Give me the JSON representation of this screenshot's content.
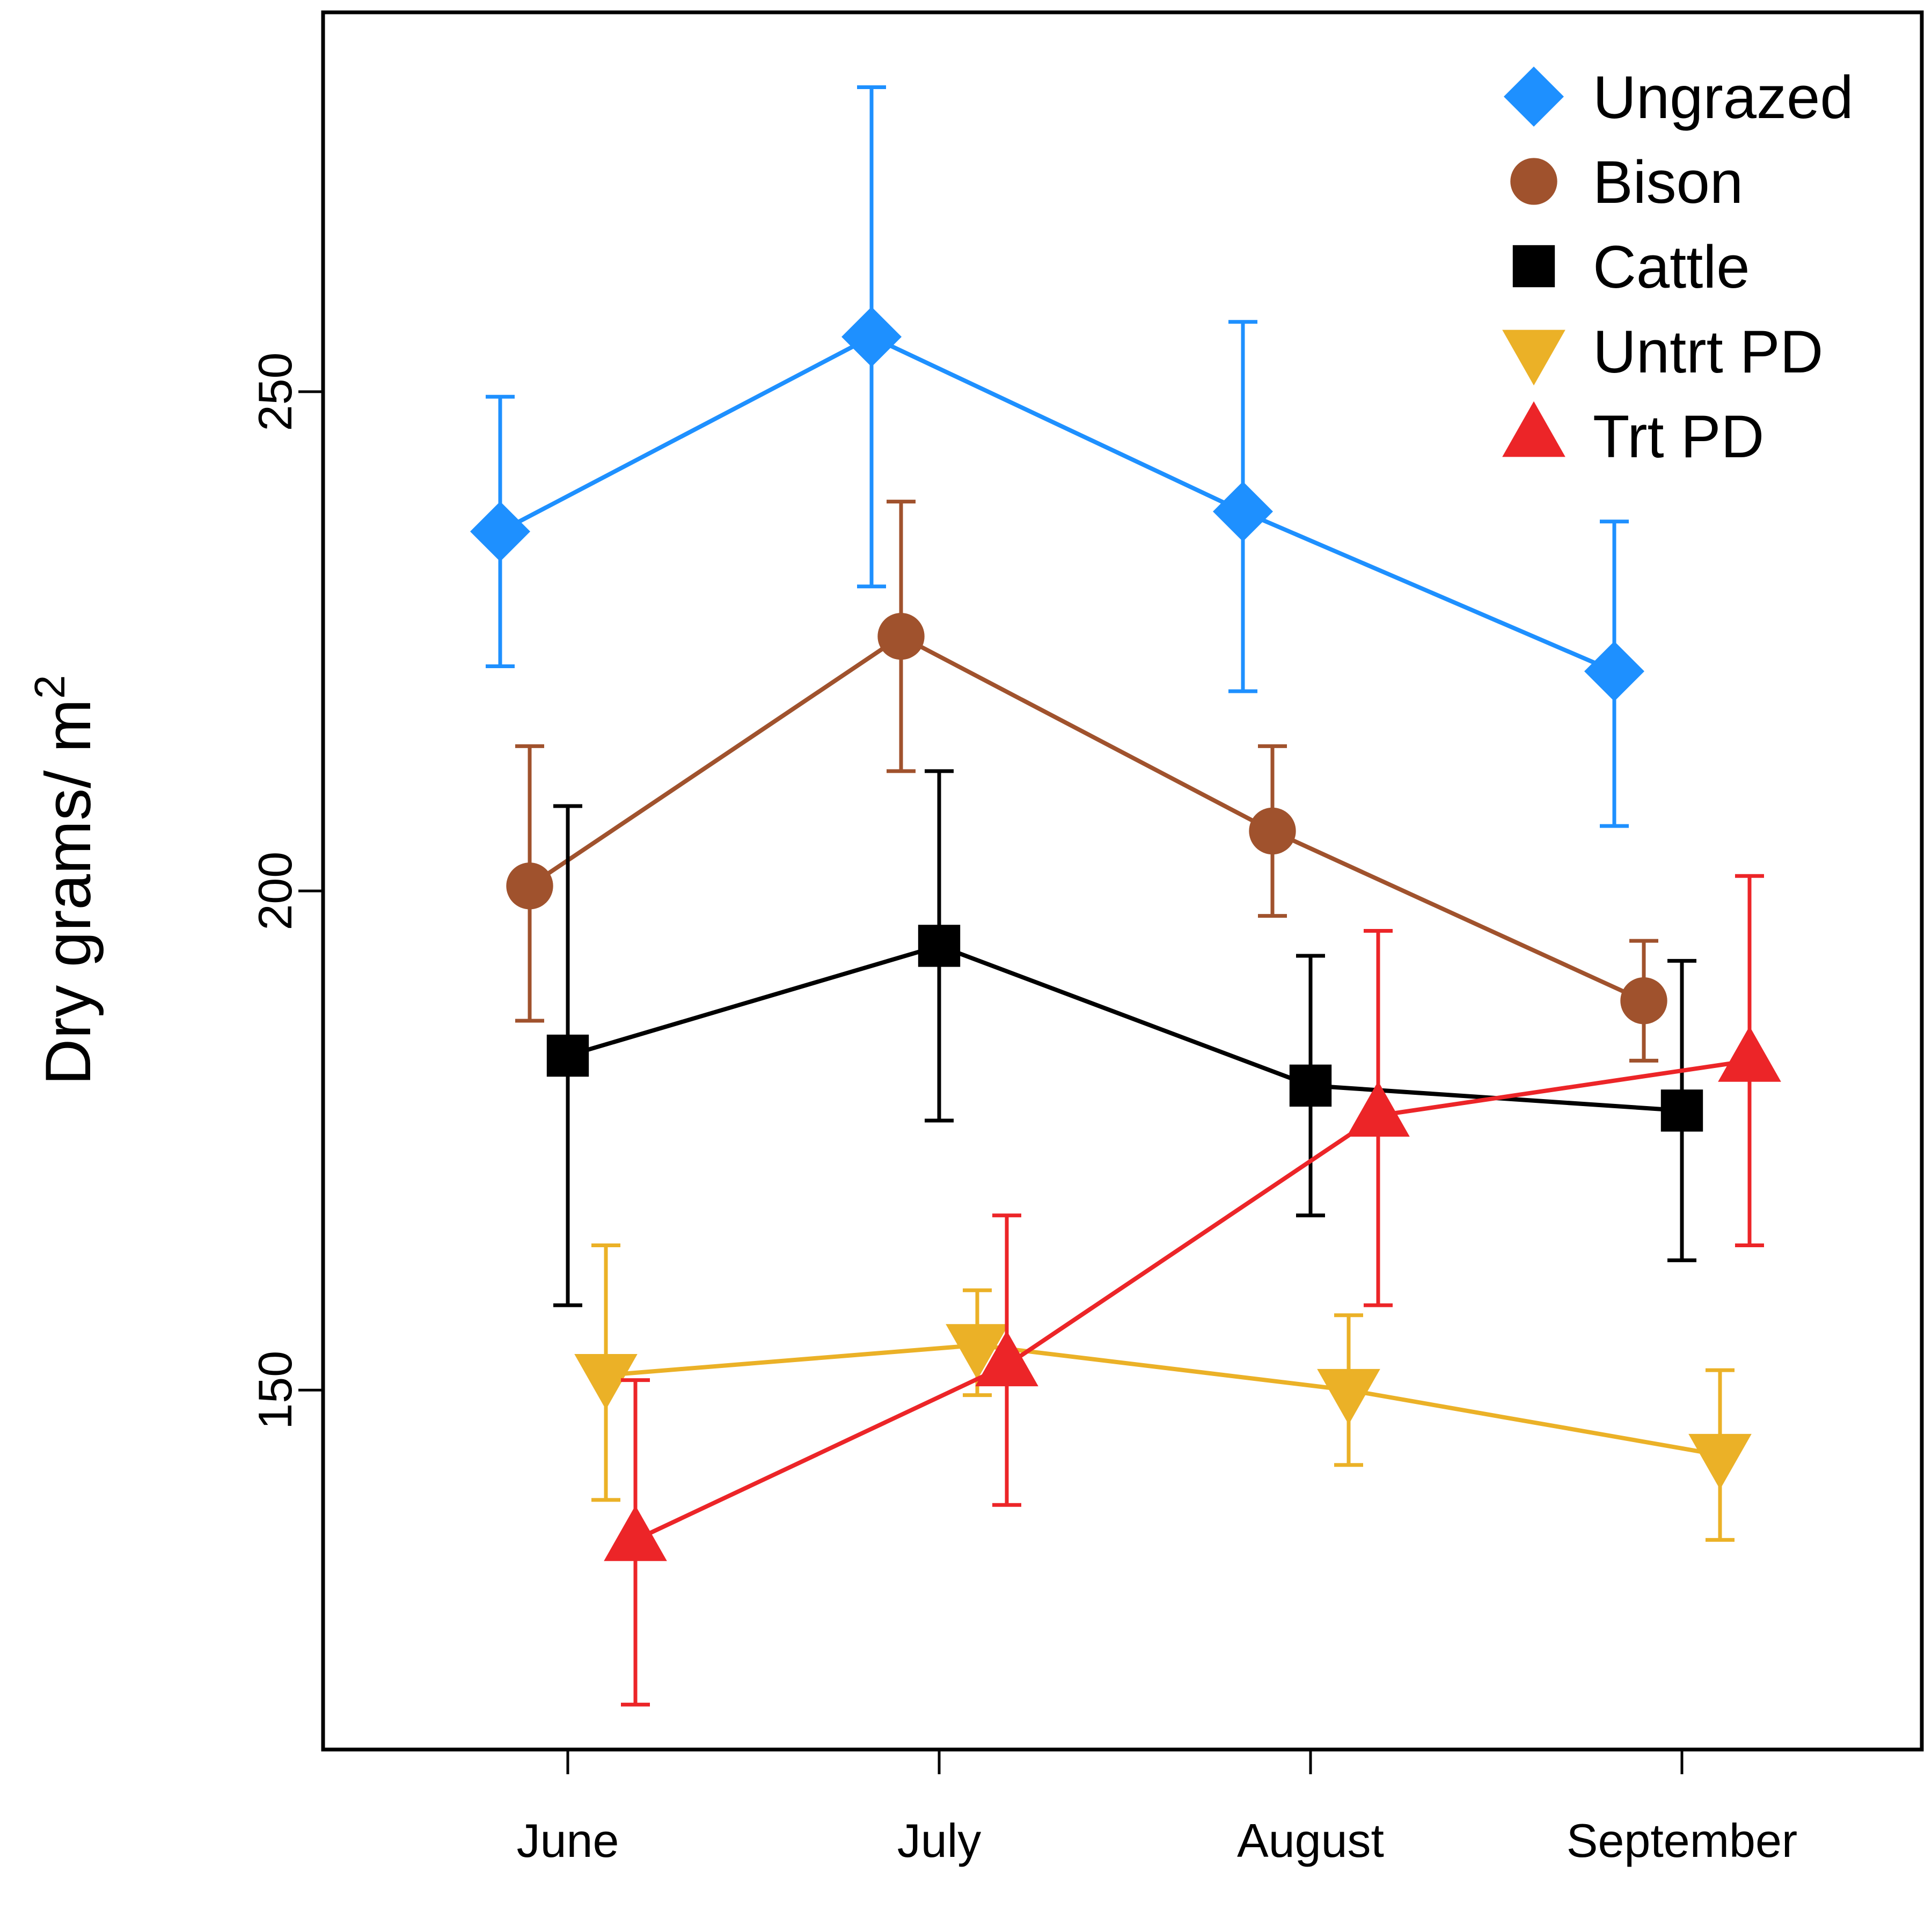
{
  "chart_data": {
    "type": "line",
    "title": "",
    "xlabel": "",
    "ylabel": "Dry grams/ m",
    "ylabel_superscript": "2",
    "categories": [
      "June",
      "July",
      "August",
      "September"
    ],
    "yticks": [
      150,
      200,
      250
    ],
    "ylim": [
      114,
      288
    ],
    "grid": false,
    "legend_position": "top-right",
    "series": [
      {
        "name": "Ungrazed",
        "color": "#1E90FF",
        "marker": "diamond",
        "values": [
          236,
          255.5,
          238,
          222
        ],
        "err_low": [
          222.5,
          230.5,
          220,
          206.5
        ],
        "err_high": [
          249.5,
          280.5,
          257,
          237
        ]
      },
      {
        "name": "Bison",
        "color": "#A0522D",
        "marker": "circle",
        "values": [
          200.5,
          225.5,
          206,
          189
        ],
        "err_low": [
          187,
          212,
          197.5,
          183
        ],
        "err_high": [
          214.5,
          239,
          214.5,
          195
        ]
      },
      {
        "name": "Cattle",
        "color": "#000000",
        "marker": "square",
        "values": [
          183.5,
          194.5,
          180.5,
          178
        ],
        "err_low": [
          158.5,
          177,
          167.5,
          163
        ],
        "err_high": [
          208.5,
          212,
          193.5,
          193
        ]
      },
      {
        "name": "Untrt PD",
        "color": "#EBB127",
        "marker": "triangle-down",
        "values": [
          151.5,
          154.5,
          150,
          143.5
        ],
        "err_low": [
          139,
          149.5,
          142.5,
          135
        ],
        "err_high": [
          164.5,
          160,
          157.5,
          152
        ]
      },
      {
        "name": "Trt PD",
        "color": "#EC2528",
        "marker": "triangle-up",
        "values": [
          135,
          152.5,
          177.5,
          183
        ],
        "err_low": [
          118.5,
          138.5,
          158.5,
          164.5
        ],
        "err_high": [
          151,
          167.5,
          196,
          201.5
        ]
      }
    ]
  }
}
